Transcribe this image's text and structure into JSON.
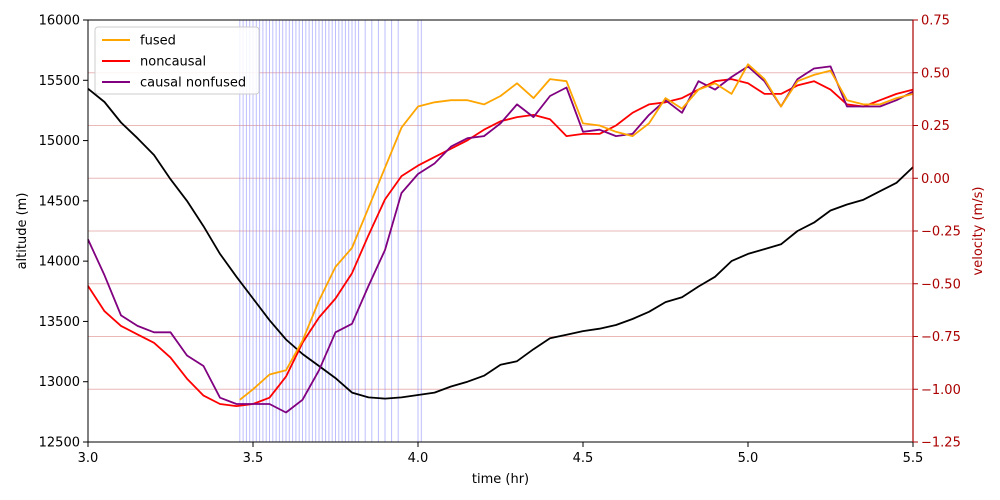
{
  "chart_data": {
    "type": "line",
    "xlabel": "time (hr)",
    "ylabel_left": "altitude (m)",
    "ylabel_right": "velocity (m/s)",
    "xlim": [
      3.0,
      5.5
    ],
    "ylim_left": [
      12500,
      16000
    ],
    "ylim_right": [
      -1.25,
      0.75
    ],
    "x_ticks": [
      "3.0",
      "3.5",
      "4.0",
      "4.5",
      "5.0",
      "5.5"
    ],
    "y_left_ticks": [
      "12500",
      "13000",
      "13500",
      "14000",
      "14500",
      "15000",
      "15500",
      "16000"
    ],
    "y_right_ticks": [
      "−1.25",
      "−1.00",
      "−0.75",
      "−0.50",
      "−0.25",
      "0.00",
      "0.25",
      "0.50",
      "0.75"
    ],
    "right_axis_color": "#aa0000",
    "legend_position": "top-left",
    "legend": [
      {
        "label": "fused",
        "color": "#ffa500"
      },
      {
        "label": "noncausal",
        "color": "#ff0000"
      },
      {
        "label": "causal nonfused",
        "color": "#800080"
      }
    ],
    "altitude_series": {
      "color": "#000000",
      "axis": "left",
      "x": [
        3.0,
        3.05,
        3.1,
        3.15,
        3.2,
        3.25,
        3.3,
        3.35,
        3.4,
        3.45,
        3.5,
        3.55,
        3.6,
        3.65,
        3.7,
        3.75,
        3.8,
        3.85,
        3.9,
        3.95,
        4.0,
        4.05,
        4.1,
        4.15,
        4.2,
        4.25,
        4.3,
        4.35,
        4.4,
        4.45,
        4.5,
        4.55,
        4.6,
        4.65,
        4.7,
        4.75,
        4.8,
        4.85,
        4.9,
        4.95,
        5.0,
        5.05,
        5.1,
        5.15,
        5.2,
        5.25,
        5.3,
        5.35,
        5.4,
        5.45,
        5.5
      ],
      "y": [
        15430,
        15320,
        15150,
        15020,
        14880,
        14680,
        14500,
        14290,
        14060,
        13870,
        13690,
        13510,
        13350,
        13230,
        13130,
        13030,
        12910,
        12870,
        12860,
        12870,
        12890,
        12910,
        12960,
        13000,
        13050,
        13140,
        13170,
        13270,
        13360,
        13390,
        13420,
        13440,
        13470,
        13520,
        13580,
        13660,
        13700,
        13790,
        13870,
        14000,
        14060,
        14100,
        14140,
        14250,
        14320,
        14420,
        14470,
        14510,
        14580,
        14650,
        14780
      ]
    },
    "series": [
      {
        "name": "fused",
        "color": "#ffa500",
        "axis": "right",
        "x": [
          3.46,
          3.5,
          3.55,
          3.6,
          3.65,
          3.7,
          3.75,
          3.8,
          3.85,
          3.9,
          3.95,
          4.0,
          4.05,
          4.1,
          4.15,
          4.2,
          4.25,
          4.3,
          4.35,
          4.4,
          4.45,
          4.5,
          4.55,
          4.6,
          4.65,
          4.7,
          4.75,
          4.8,
          4.85,
          4.9,
          4.95,
          5.0,
          5.05,
          5.1,
          5.15,
          5.2,
          5.25,
          5.3,
          5.35,
          5.4,
          5.45,
          5.5
        ],
        "y": [
          -1.05,
          -1.0,
          -0.93,
          -0.91,
          -0.77,
          -0.58,
          -0.42,
          -0.33,
          -0.14,
          0.05,
          0.24,
          0.34,
          0.36,
          0.37,
          0.37,
          0.35,
          0.39,
          0.45,
          0.38,
          0.47,
          0.46,
          0.26,
          0.25,
          0.22,
          0.2,
          0.26,
          0.38,
          0.33,
          0.42,
          0.45,
          0.4,
          0.54,
          0.47,
          0.34,
          0.46,
          0.49,
          0.51,
          0.37,
          0.35,
          0.35,
          0.38,
          0.4
        ]
      },
      {
        "name": "noncausal",
        "color": "#ff0000",
        "axis": "right",
        "x": [
          3.0,
          3.05,
          3.1,
          3.15,
          3.2,
          3.25,
          3.3,
          3.35,
          3.4,
          3.45,
          3.5,
          3.55,
          3.6,
          3.65,
          3.7,
          3.75,
          3.8,
          3.85,
          3.9,
          3.95,
          4.0,
          4.05,
          4.1,
          4.15,
          4.2,
          4.25,
          4.3,
          4.35,
          4.4,
          4.45,
          4.5,
          4.55,
          4.6,
          4.65,
          4.7,
          4.75,
          4.8,
          4.85,
          4.9,
          4.95,
          5.0,
          5.05,
          5.1,
          5.15,
          5.2,
          5.25,
          5.3,
          5.35,
          5.4,
          5.45,
          5.5
        ],
        "y": [
          -0.51,
          -0.63,
          -0.7,
          -0.74,
          -0.78,
          -0.85,
          -0.95,
          -1.03,
          -1.07,
          -1.08,
          -1.07,
          -1.04,
          -0.94,
          -0.78,
          -0.66,
          -0.57,
          -0.45,
          -0.27,
          -0.1,
          0.01,
          0.06,
          0.1,
          0.14,
          0.18,
          0.23,
          0.27,
          0.29,
          0.3,
          0.28,
          0.2,
          0.21,
          0.21,
          0.25,
          0.31,
          0.35,
          0.36,
          0.38,
          0.42,
          0.46,
          0.47,
          0.45,
          0.4,
          0.4,
          0.44,
          0.46,
          0.42,
          0.35,
          0.34,
          0.37,
          0.4,
          0.42
        ]
      },
      {
        "name": "causal nonfused",
        "color": "#800080",
        "axis": "right",
        "x": [
          3.0,
          3.05,
          3.1,
          3.15,
          3.2,
          3.25,
          3.3,
          3.35,
          3.4,
          3.45,
          3.5,
          3.55,
          3.6,
          3.65,
          3.7,
          3.75,
          3.8,
          3.85,
          3.9,
          3.95,
          4.0,
          4.05,
          4.1,
          4.15,
          4.2,
          4.25,
          4.3,
          4.35,
          4.4,
          4.45,
          4.5,
          4.55,
          4.6,
          4.65,
          4.7,
          4.75,
          4.8,
          4.85,
          4.9,
          4.95,
          5.0,
          5.05,
          5.1,
          5.15,
          5.2,
          5.25,
          5.3,
          5.35,
          5.4,
          5.45,
          5.5
        ],
        "y": [
          -0.29,
          -0.46,
          -0.65,
          -0.7,
          -0.73,
          -0.73,
          -0.84,
          -0.89,
          -1.04,
          -1.07,
          -1.07,
          -1.07,
          -1.11,
          -1.05,
          -0.91,
          -0.73,
          -0.69,
          -0.51,
          -0.34,
          -0.07,
          0.02,
          0.07,
          0.15,
          0.19,
          0.2,
          0.26,
          0.35,
          0.29,
          0.39,
          0.43,
          0.22,
          0.23,
          0.2,
          0.21,
          0.3,
          0.37,
          0.31,
          0.46,
          0.42,
          0.48,
          0.53,
          0.46,
          0.34,
          0.47,
          0.52,
          0.53,
          0.34,
          0.34,
          0.34,
          0.37,
          0.41
        ]
      }
    ],
    "event_lines": {
      "color": "#8888ff",
      "x": [
        3.46,
        3.47,
        3.48,
        3.49,
        3.5,
        3.51,
        3.52,
        3.53,
        3.54,
        3.55,
        3.56,
        3.57,
        3.58,
        3.59,
        3.6,
        3.61,
        3.62,
        3.63,
        3.64,
        3.65,
        3.66,
        3.67,
        3.68,
        3.69,
        3.7,
        3.71,
        3.72,
        3.73,
        3.74,
        3.75,
        3.76,
        3.77,
        3.78,
        3.79,
        3.8,
        3.81,
        3.82,
        3.84,
        3.86,
        3.88,
        3.9,
        3.92,
        3.94,
        4.0,
        4.01
      ]
    },
    "grid_lines_right_axis": {
      "color": "#dd8888",
      "y": [
        -1.0,
        -0.75,
        -0.5,
        -0.25,
        0.0,
        0.25,
        0.5
      ]
    }
  }
}
